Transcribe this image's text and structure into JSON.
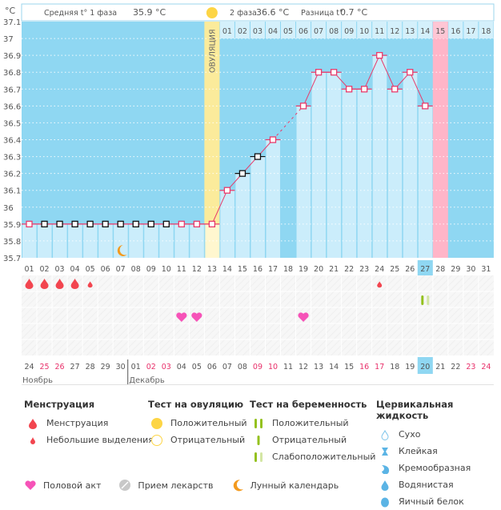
{
  "header": {
    "phase1_label": "Средняя t° 1 фаза",
    "phase1_value": "35.9 °C",
    "phase2_label": "2 фаза",
    "phase2_value": "36.6 °C",
    "diff_label": "Разница t°",
    "diff_value": "0.7 °C"
  },
  "ovulation_label": "ОВУЛЯЦИЯ",
  "colors": {
    "sky": "#8fd7f2",
    "bar": "#cbedfb",
    "ovulation": "#fbeb9b",
    "menstruation_next": "#ffb5c8",
    "line": "#e83b6b",
    "today": "#8fd7f2"
  },
  "chart_data": {
    "type": "line",
    "title": "",
    "ylabel": "°C",
    "xlabel": "",
    "ylim": [
      35.7,
      37.1
    ],
    "yticks": [
      "37.1",
      "37",
      "36.9",
      "36.8",
      "36.7",
      "36.6",
      "36.5",
      "36.4",
      "36.3",
      "36.2",
      "36.1",
      "36",
      "35.9",
      "35.8",
      "35.7"
    ],
    "cycle_days": [
      "01",
      "02",
      "03",
      "04",
      "05",
      "06",
      "07",
      "08",
      "09",
      "10",
      "11",
      "12",
      "13",
      "14",
      "15",
      "16",
      "17",
      "18",
      "19",
      "20",
      "21",
      "22",
      "23",
      "24",
      "25",
      "26",
      "27",
      "28",
      "29",
      "30",
      "31"
    ],
    "dates": [
      "24",
      "25",
      "26",
      "27",
      "28",
      "29",
      "30",
      "01",
      "02",
      "03",
      "04",
      "05",
      "06",
      "07",
      "08",
      "09",
      "10",
      "11",
      "12",
      "13",
      "14",
      "15",
      "16",
      "17",
      "18",
      "19",
      "20",
      "21",
      "22",
      "23",
      "24"
    ],
    "weekend_dates_idx": [
      1,
      2,
      8,
      9,
      15,
      16,
      22,
      23,
      29,
      30
    ],
    "months": [
      {
        "label": "Ноябрь",
        "start_index": 0
      },
      {
        "label": "Декабрь",
        "start_index": 7
      }
    ],
    "luteal_days": [
      "01",
      "02",
      "03",
      "04",
      "05",
      "06",
      "07",
      "08",
      "09",
      "10",
      "11",
      "12",
      "13",
      "14",
      "15",
      "16",
      "17",
      "18"
    ],
    "luteal_start_index": 13,
    "ovulation_index": 12,
    "next_period_index": 27,
    "today_index": 26,
    "series": [
      {
        "name": "Базальная температура",
        "values": [
          35.9,
          35.9,
          35.9,
          35.9,
          35.9,
          35.9,
          35.9,
          35.9,
          35.9,
          35.9,
          35.9,
          35.9,
          35.9,
          36.1,
          36.2,
          36.3,
          36.4,
          null,
          36.6,
          36.8,
          36.8,
          36.7,
          36.7,
          36.9,
          36.7,
          36.8,
          36.6,
          null,
          null,
          null,
          null
        ],
        "marker_colors": [
          "pink",
          "black",
          "black",
          "black",
          "black",
          "black",
          "black",
          "black",
          "black",
          "black",
          "pink",
          "pink",
          "pink",
          "pink",
          "black",
          "black",
          "pink",
          null,
          "pink",
          "pink",
          "pink",
          "pink",
          "pink",
          "pink",
          "pink",
          "pink",
          "pink",
          null,
          null,
          null,
          null
        ]
      }
    ],
    "coverline": 35.9,
    "events": {
      "menstruation": [
        0,
        1,
        2,
        3
      ],
      "spotting": [
        4,
        23
      ],
      "intercourse": [
        10,
        11,
        18
      ],
      "pregnancy_test_faint": [
        26
      ],
      "moon": [
        6
      ]
    }
  },
  "legend": {
    "menstruation": {
      "title": "Менструация",
      "items": [
        "Менструация",
        "Небольшие выделения"
      ]
    },
    "ovulation_test": {
      "title": "Тест на овуляцию",
      "items": [
        "Положительный",
        "Отрицательный"
      ]
    },
    "pregnancy_test": {
      "title": "Тест на беременность",
      "items": [
        "Положительный",
        "Отрицательный",
        "Слабоположительный"
      ]
    },
    "cervical": {
      "title": "Цервикальная жидкость",
      "items": [
        "Сухо",
        "Клейкая",
        "Кремообразная",
        "Водянистая",
        "Яичный белок"
      ]
    },
    "bottom": [
      "Половой акт",
      "Прием лекарств",
      "Лунный календарь"
    ]
  }
}
